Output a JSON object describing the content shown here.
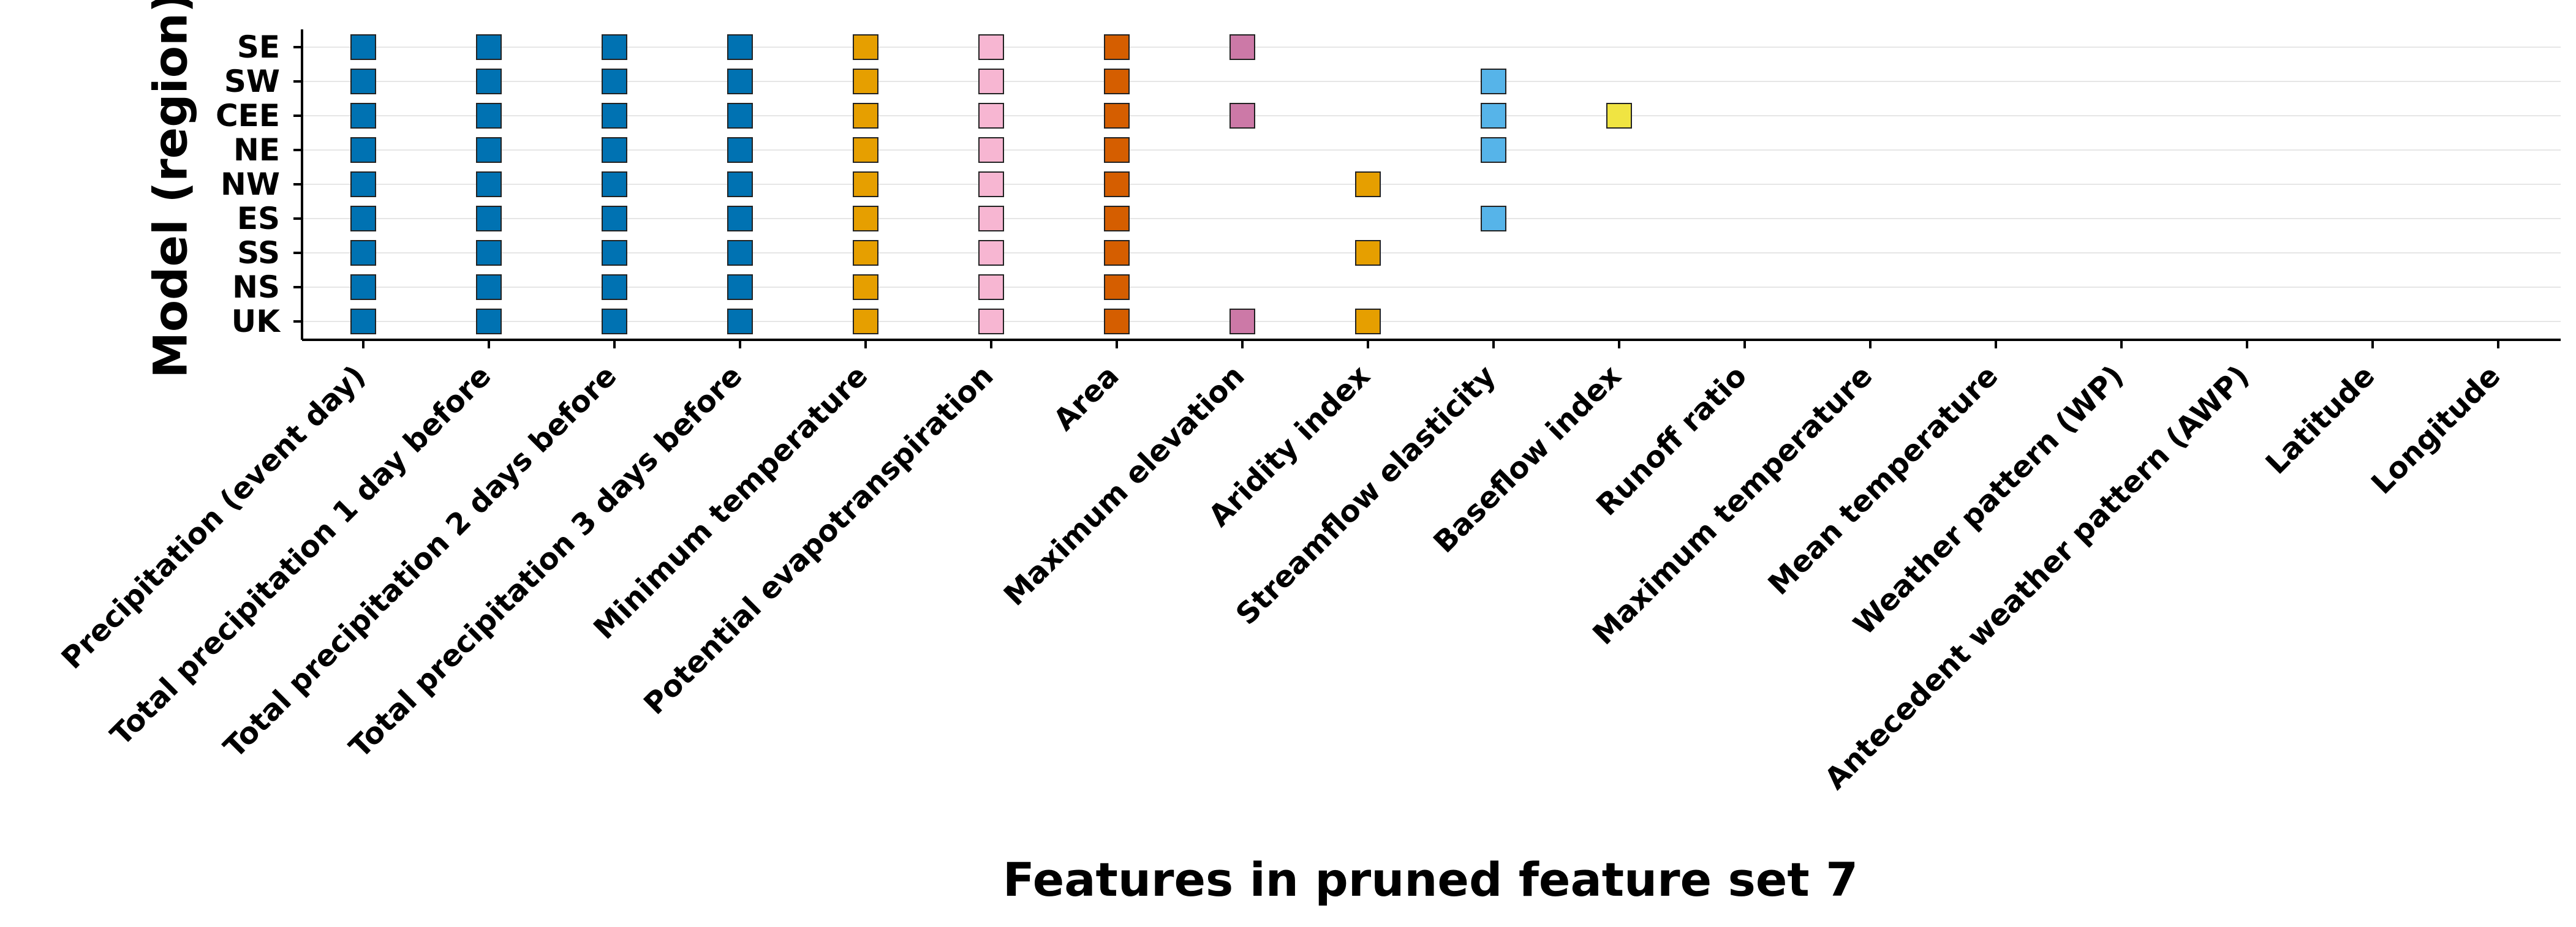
{
  "chart_data": {
    "type": "scatter",
    "xlabel": "Features in pruned feature set 7",
    "ylabel": "Model (region)",
    "grid": "horizontal",
    "rows": [
      "SE",
      "SW",
      "CEE",
      "NE",
      "NW",
      "ES",
      "SS",
      "NS",
      "UK"
    ],
    "features": [
      "Precipitation (event day)",
      "Total precipitation 1 day before",
      "Total precipitation 2 days before",
      "Total precipitation 3 days before",
      "Minimum temperature",
      "Potential evapotranspiration",
      "Area",
      "Maximum elevation",
      "Aridity index",
      "Streamflow elasticity",
      "Baseflow index",
      "Runoff ratio",
      "Maximum temperature",
      "Mean temperature",
      "Weather pattern (WP)",
      "Antecedent weather pattern (AWP)",
      "Latitude",
      "Longitude"
    ],
    "feature_colors": {
      "Precipitation (event day)": "#0072b2",
      "Total precipitation 1 day before": "#0072b2",
      "Total precipitation 2 days before": "#0072b2",
      "Total precipitation 3 days before": "#0072b2",
      "Minimum temperature": "#e69f00",
      "Potential evapotranspiration": "#f7b6d2",
      "Area": "#d55e00",
      "Maximum elevation": "#cc79a7",
      "Aridity index": "#e69f00",
      "Streamflow elasticity": "#56b4e9",
      "Baseflow index": "#f0e442"
    },
    "selected": {
      "SE": [
        "Precipitation (event day)",
        "Total precipitation 1 day before",
        "Total precipitation 2 days before",
        "Total precipitation 3 days before",
        "Minimum temperature",
        "Potential evapotranspiration",
        "Area",
        "Maximum elevation"
      ],
      "SW": [
        "Precipitation (event day)",
        "Total precipitation 1 day before",
        "Total precipitation 2 days before",
        "Total precipitation 3 days before",
        "Minimum temperature",
        "Potential evapotranspiration",
        "Area",
        "Streamflow elasticity"
      ],
      "CEE": [
        "Precipitation (event day)",
        "Total precipitation 1 day before",
        "Total precipitation 2 days before",
        "Total precipitation 3 days before",
        "Minimum temperature",
        "Potential evapotranspiration",
        "Area",
        "Maximum elevation",
        "Streamflow elasticity",
        "Baseflow index"
      ],
      "NE": [
        "Precipitation (event day)",
        "Total precipitation 1 day before",
        "Total precipitation 2 days before",
        "Total precipitation 3 days before",
        "Minimum temperature",
        "Potential evapotranspiration",
        "Area",
        "Streamflow elasticity"
      ],
      "NW": [
        "Precipitation (event day)",
        "Total precipitation 1 day before",
        "Total precipitation 2 days before",
        "Total precipitation 3 days before",
        "Minimum temperature",
        "Potential evapotranspiration",
        "Area",
        "Aridity index"
      ],
      "ES": [
        "Precipitation (event day)",
        "Total precipitation 1 day before",
        "Total precipitation 2 days before",
        "Total precipitation 3 days before",
        "Minimum temperature",
        "Potential evapotranspiration",
        "Area",
        "Streamflow elasticity"
      ],
      "SS": [
        "Precipitation (event day)",
        "Total precipitation 1 day before",
        "Total precipitation 2 days before",
        "Total precipitation 3 days before",
        "Minimum temperature",
        "Potential evapotranspiration",
        "Area",
        "Aridity index"
      ],
      "NS": [
        "Precipitation (event day)",
        "Total precipitation 1 day before",
        "Total precipitation 2 days before",
        "Total precipitation 3 days before",
        "Minimum temperature",
        "Potential evapotranspiration",
        "Area"
      ],
      "UK": [
        "Precipitation (event day)",
        "Total precipitation 1 day before",
        "Total precipitation 2 days before",
        "Total precipitation 3 days before",
        "Minimum temperature",
        "Potential evapotranspiration",
        "Area",
        "Maximum elevation",
        "Aridity index"
      ]
    }
  }
}
